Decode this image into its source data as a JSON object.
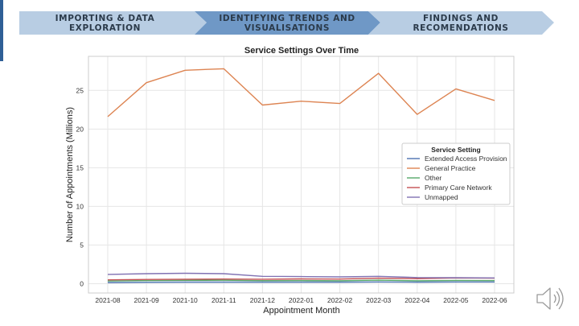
{
  "stepper": {
    "steps": [
      {
        "label": "IMPORTING & DATA EXPLORATION",
        "state": "inactive"
      },
      {
        "label": "IDENTIFYING TRENDS AND VISUALISATIONS",
        "state": "active"
      },
      {
        "label": "FINDINGS AND RECOMENDATIONS",
        "state": "inactive"
      }
    ],
    "colors": {
      "inactive_fill": "#b8cde3",
      "active_fill": "#6f98c6",
      "text": "#2b3a4a"
    }
  },
  "chart_data": {
    "type": "line",
    "title": "Service Settings Over Time",
    "xlabel": "Appointment Month",
    "ylabel": "Number of Appointments (Millions)",
    "x": [
      "2021-08",
      "2021-09",
      "2021-10",
      "2021-11",
      "2021-12",
      "2022-01",
      "2022-02",
      "2022-03",
      "2022-04",
      "2022-05",
      "2022-06"
    ],
    "ylim": [
      -1.2,
      29.4
    ],
    "yticks": [
      0,
      5,
      10,
      15,
      20,
      25
    ],
    "grid": true,
    "legend": {
      "title": "Service Setting",
      "placement": "center-right"
    },
    "series": [
      {
        "name": "Extended Access Provision",
        "color": "#4c72b0",
        "values": [
          0.15,
          0.18,
          0.2,
          0.21,
          0.2,
          0.2,
          0.2,
          0.23,
          0.21,
          0.23,
          0.23
        ]
      },
      {
        "name": "General Practice",
        "color": "#dd8452",
        "values": [
          21.6,
          26.0,
          27.6,
          27.8,
          23.1,
          23.6,
          23.3,
          27.2,
          21.9,
          25.2,
          23.7
        ]
      },
      {
        "name": "Other",
        "color": "#55a868",
        "values": [
          0.35,
          0.4,
          0.43,
          0.44,
          0.39,
          0.4,
          0.38,
          0.45,
          0.38,
          0.42,
          0.4
        ]
      },
      {
        "name": "Primary Care Network",
        "color": "#c44e52",
        "values": [
          0.5,
          0.55,
          0.58,
          0.6,
          0.58,
          0.62,
          0.6,
          0.72,
          0.65,
          0.75,
          0.72
        ]
      },
      {
        "name": "Unmapped",
        "color": "#8172b3",
        "values": [
          1.2,
          1.3,
          1.35,
          1.3,
          0.95,
          0.92,
          0.88,
          0.95,
          0.8,
          0.78,
          0.75
        ]
      }
    ]
  }
}
